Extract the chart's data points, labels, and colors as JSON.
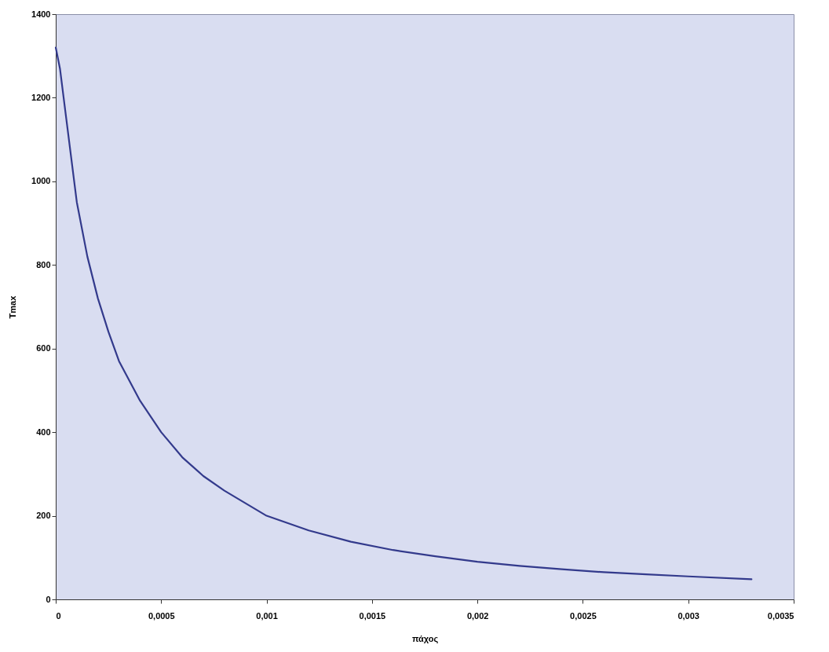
{
  "chart_data": {
    "type": "line",
    "xlabel": "πάχος",
    "ylabel": "Tmax",
    "x": [
      0,
      2e-05,
      5e-05,
      0.0001,
      0.00015,
      0.0002,
      0.00025,
      0.0003,
      0.0004,
      0.0005,
      0.0006,
      0.0007,
      0.0008,
      0.0009,
      0.001,
      0.0012,
      0.0014,
      0.0016,
      0.0018,
      0.002,
      0.0022,
      0.0024,
      0.0026,
      0.0028,
      0.003,
      0.0033
    ],
    "series": [
      {
        "color": "#333a8c",
        "values": [
          1320,
          1270,
          1150,
          950,
          820,
          720,
          640,
          570,
          475,
          400,
          340,
          295,
          260,
          230,
          200,
          165,
          138,
          118,
          103,
          90,
          80,
          72,
          65,
          60,
          55,
          48
        ]
      }
    ],
    "xlim": [
      0,
      0.0035
    ],
    "ylim": [
      0,
      1400
    ],
    "xticks": [
      0,
      {
        "value": 0.0005,
        "label": "0,0005"
      },
      {
        "value": 0.001,
        "label": "0,001"
      },
      {
        "value": 0.0015,
        "label": "0,0015"
      },
      {
        "value": 0.002,
        "label": "0,002"
      },
      {
        "value": 0.0025,
        "label": "0,0025"
      },
      {
        "value": 0.003,
        "label": "0,003"
      },
      {
        "value": 0.0035,
        "label": "0,0035"
      }
    ],
    "yticks": [
      0,
      200,
      400,
      600,
      800,
      1000,
      1200,
      1400
    ],
    "grid": false,
    "marker": "none",
    "line_style": "solid"
  }
}
